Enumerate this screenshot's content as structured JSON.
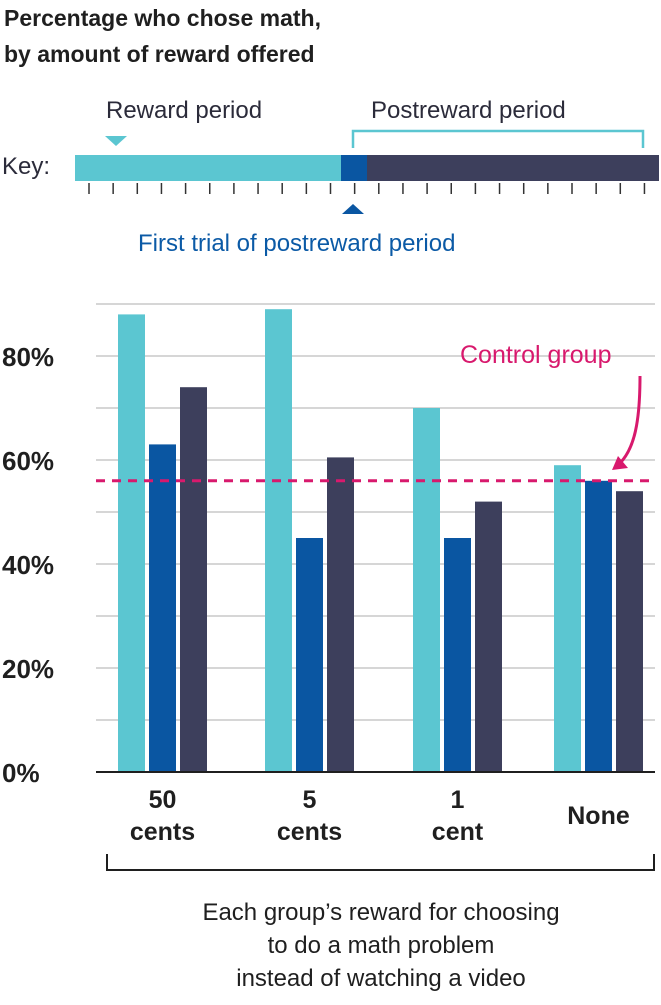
{
  "title_lines": [
    "Percentage who chose math,",
    "by amount of reward offered"
  ],
  "key": {
    "label": "Key:",
    "reward_period": "Reward period",
    "postreward_period": "Postreward period",
    "first_trial": "First trial of postreward period"
  },
  "colors": {
    "reward": "#5bc6d1",
    "first_trial": "#0a56a2",
    "postreward": "#3d3f5c",
    "control": "#d8196d",
    "grid": "#bdbdbd",
    "axis": "#1f1f1f"
  },
  "chart_data": {
    "type": "bar",
    "title": "Percentage who chose math, by amount of reward offered",
    "categories": [
      [
        "50",
        "cents"
      ],
      [
        "5",
        "cents"
      ],
      [
        "1",
        "cent"
      ],
      [
        "None"
      ]
    ],
    "series": [
      {
        "name": "Reward period",
        "values": [
          88,
          89,
          70,
          59
        ]
      },
      {
        "name": "First trial of postreward period",
        "values": [
          63,
          45,
          45,
          56
        ]
      },
      {
        "name": "Postreward period",
        "values": [
          74,
          60.5,
          52,
          54
        ]
      }
    ],
    "yticks": [
      "0%",
      "20%",
      "40%",
      "60%",
      "80%"
    ],
    "ytick_values": [
      0,
      20,
      40,
      60,
      80
    ],
    "ylim": [
      0,
      90
    ],
    "grid": true,
    "control_group": {
      "label": "Control group",
      "value": 56
    }
  },
  "caption": [
    "Each group’s reward for choosing",
    "to do a math problem",
    "instead of watching a video"
  ]
}
